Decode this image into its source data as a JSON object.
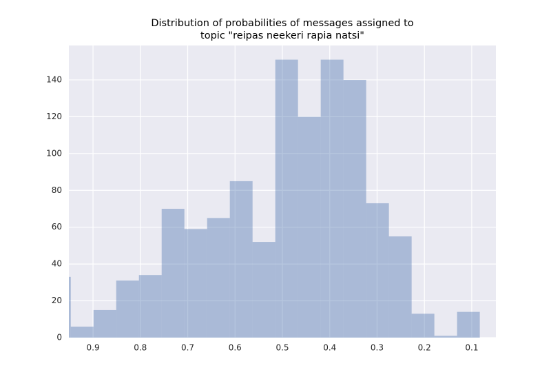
{
  "chart_data": {
    "type": "histogram",
    "title": [
      "Distribution of probabilities of messages assigned to",
      "topic \"reipas neekeri rapia natsi\""
    ],
    "bins": [
      0.083,
      0.131,
      0.179,
      0.227,
      0.275,
      0.323,
      0.371,
      0.419,
      0.467,
      0.515,
      0.563,
      0.611,
      0.659,
      0.707,
      0.755,
      0.803,
      0.851,
      0.899,
      0.947,
      0.995
    ],
    "values": [
      14,
      1,
      13,
      55,
      73,
      140,
      151,
      120,
      151,
      52,
      85,
      65,
      59,
      70,
      34,
      31,
      15,
      6,
      33
    ],
    "color": "#4c72b0",
    "xlim": [
      0.951,
      0.049
    ],
    "xticks": [
      0.9,
      0.8,
      0.7,
      0.6,
      0.5,
      0.4,
      0.3,
      0.2,
      0.1
    ],
    "ylim": [
      0,
      158.7
    ],
    "yticks": [
      0,
      20,
      40,
      60,
      80,
      100,
      120,
      140
    ],
    "grid": true
  }
}
